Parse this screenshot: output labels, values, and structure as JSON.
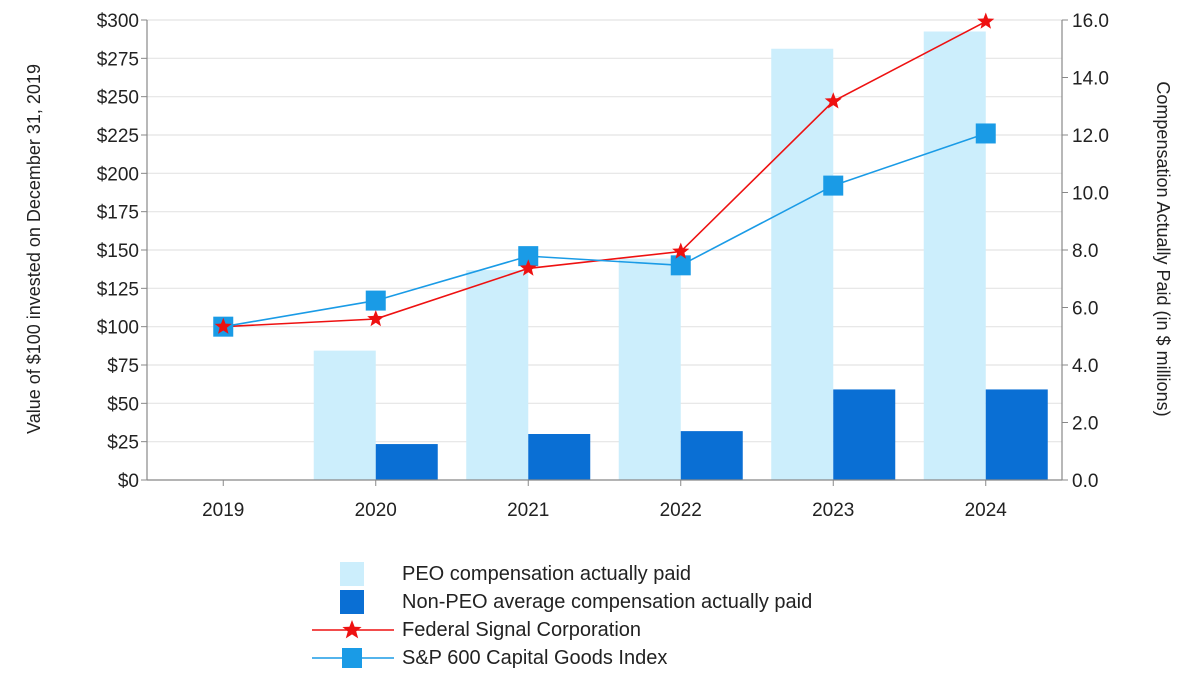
{
  "chart_data": {
    "type": "bar-line combo",
    "categories": [
      "2019",
      "2020",
      "2021",
      "2022",
      "2023",
      "2024"
    ],
    "bar_series": [
      {
        "name": "PEO compensation actually paid",
        "axis": "right",
        "color": "#cceefc",
        "values": [
          null,
          4.5,
          7.3,
          7.7,
          15.0,
          15.6
        ]
      },
      {
        "name": "Non-PEO average compensation actually paid",
        "axis": "right",
        "color": "#0a6fd4",
        "values": [
          null,
          1.25,
          1.6,
          1.7,
          3.15,
          3.15
        ]
      }
    ],
    "line_series": [
      {
        "name": "Federal Signal Corporation",
        "axis": "left",
        "color": "#ee1111",
        "marker": "star",
        "values": [
          100,
          105,
          138,
          149,
          247,
          299
        ]
      },
      {
        "name": "S&P 600 Capital Goods Index",
        "axis": "left",
        "color": "#1a9be6",
        "marker": "square",
        "values": [
          100,
          117,
          146,
          140,
          192,
          226
        ]
      }
    ],
    "left_axis": {
      "label": "Value of $100 invested on December 31, 2019",
      "ylim": [
        0,
        300
      ],
      "ticks": [
        "$0",
        "$25",
        "$50",
        "$75",
        "$100",
        "$125",
        "$150",
        "$175",
        "$200",
        "$225",
        "$250",
        "$275",
        "$300"
      ]
    },
    "right_axis": {
      "label": "Compensation Actually Paid (in $ millions)",
      "ylim": [
        0,
        16
      ],
      "ticks": [
        "0.0",
        "2.0",
        "4.0",
        "6.0",
        "8.0",
        "10.0",
        "12.0",
        "14.0",
        "16.0"
      ]
    },
    "grid": true,
    "legend_position": "bottom"
  }
}
